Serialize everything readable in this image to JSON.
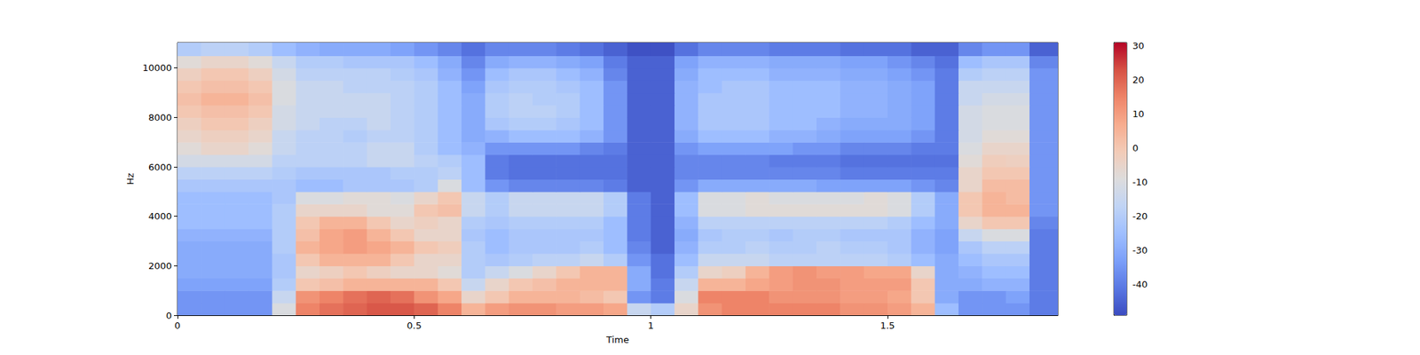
{
  "chart_data": {
    "type": "heatmap",
    "x_label": "Time",
    "y_label": "Hz",
    "xlim": [
      0,
      1.86
    ],
    "xticks": [
      0,
      0.5,
      1,
      1.5
    ],
    "ylim": [
      0,
      11025
    ],
    "yticks": [
      0,
      2000,
      4000,
      6000,
      8000,
      10000
    ],
    "x_bins": [
      0,
      0.05,
      0.1,
      0.15,
      0.2,
      0.25,
      0.3,
      0.35,
      0.4,
      0.45,
      0.5,
      0.55,
      0.6,
      0.65,
      0.7,
      0.75,
      0.8,
      0.85,
      0.9,
      0.95,
      1,
      1.05,
      1.1,
      1.15,
      1.2,
      1.25,
      1.3,
      1.35,
      1.4,
      1.45,
      1.5,
      1.55,
      1.6,
      1.65,
      1.7,
      1.75,
      1.8,
      1.86
    ],
    "y_bins": [
      0,
      500,
      1000,
      1500,
      2000,
      2500,
      3000,
      3500,
      4000,
      4500,
      5000,
      5500,
      6000,
      6500,
      7000,
      7500,
      8000,
      8500,
      9000,
      9500,
      10000,
      10500,
      11025
    ],
    "cells": [
      [
        -35,
        -35,
        -35,
        -35,
        -10,
        15,
        18,
        20,
        22,
        22,
        20,
        15,
        5,
        10,
        12,
        12,
        10,
        10,
        8,
        -15,
        -20,
        -5,
        12,
        15,
        15,
        15,
        15,
        15,
        12,
        12,
        10,
        5,
        -25,
        -35,
        -35,
        -35,
        -40
      ],
      [
        -35,
        -35,
        -35,
        -35,
        -15,
        12,
        15,
        18,
        20,
        18,
        12,
        8,
        -5,
        0,
        5,
        5,
        5,
        3,
        0,
        -35,
        -40,
        -10,
        15,
        15,
        15,
        12,
        12,
        12,
        10,
        10,
        8,
        0,
        -30,
        -35,
        -35,
        -32,
        -40
      ],
      [
        -32,
        -32,
        -32,
        -32,
        -20,
        0,
        2,
        5,
        5,
        5,
        5,
        0,
        -15,
        -5,
        0,
        2,
        5,
        5,
        5,
        -30,
        -40,
        -15,
        5,
        5,
        8,
        10,
        12,
        12,
        10,
        10,
        10,
        0,
        -30,
        -30,
        -28,
        -28,
        -40
      ],
      [
        -30,
        -30,
        -30,
        -30,
        -22,
        -5,
        -3,
        0,
        -3,
        -5,
        -5,
        -8,
        -20,
        -15,
        -10,
        -5,
        0,
        5,
        5,
        -30,
        -42,
        -20,
        -5,
        -3,
        5,
        10,
        12,
        10,
        10,
        8,
        8,
        -5,
        -30,
        -28,
        -25,
        -25,
        -40
      ],
      [
        -30,
        -30,
        -30,
        -30,
        -22,
        0,
        5,
        5,
        5,
        0,
        -5,
        -5,
        -20,
        -22,
        -20,
        -18,
        -18,
        -15,
        -20,
        -35,
        -42,
        -25,
        -15,
        -15,
        -15,
        -18,
        -18,
        -18,
        -18,
        -18,
        -20,
        -25,
        -30,
        -25,
        -22,
        -22,
        -40
      ],
      [
        -30,
        -30,
        -30,
        -30,
        -20,
        5,
        8,
        10,
        8,
        5,
        0,
        -2,
        -20,
        -25,
        -22,
        -22,
        -22,
        -20,
        -25,
        -38,
        -45,
        -28,
        -20,
        -20,
        -18,
        -20,
        -20,
        -18,
        -20,
        -20,
        -22,
        -28,
        -32,
        -22,
        -18,
        -18,
        -40
      ],
      [
        -28,
        -28,
        -28,
        -28,
        -20,
        2,
        8,
        10,
        5,
        0,
        -5,
        -5,
        -22,
        -25,
        -22,
        -22,
        -22,
        -22,
        -25,
        -40,
        -45,
        -30,
        -22,
        -20,
        -20,
        -22,
        -20,
        -20,
        -22,
        -22,
        -22,
        -28,
        -32,
        -15,
        -10,
        -10,
        -40
      ],
      [
        -25,
        -25,
        -25,
        -25,
        -20,
        0,
        5,
        5,
        0,
        -5,
        -3,
        -5,
        -20,
        -22,
        -20,
        -20,
        -20,
        -20,
        -25,
        -40,
        -45,
        -28,
        -18,
        -18,
        -18,
        -18,
        -18,
        -18,
        -18,
        -18,
        -20,
        -25,
        -30,
        -5,
        0,
        0,
        -38
      ],
      [
        -25,
        -25,
        -25,
        -25,
        -20,
        -5,
        -5,
        -5,
        -8,
        -8,
        0,
        2,
        -15,
        -20,
        -15,
        -15,
        -15,
        -15,
        -20,
        -40,
        -45,
        -25,
        -10,
        -10,
        -8,
        -8,
        -8,
        -8,
        -8,
        -8,
        -10,
        -20,
        -30,
        0,
        5,
        5,
        -35
      ],
      [
        -25,
        -25,
        -25,
        -25,
        -22,
        -10,
        -10,
        -8,
        -8,
        -10,
        -5,
        0,
        -15,
        -20,
        -15,
        -15,
        -15,
        -15,
        -20,
        -40,
        -45,
        -25,
        -10,
        -10,
        -8,
        -10,
        -10,
        -10,
        -10,
        -8,
        -10,
        -20,
        -30,
        0,
        5,
        3,
        -35
      ],
      [
        -22,
        -22,
        -22,
        -22,
        -22,
        -25,
        -25,
        -22,
        -22,
        -22,
        -20,
        -10,
        -25,
        -35,
        -38,
        -38,
        -38,
        -38,
        -40,
        -45,
        -45,
        -35,
        -30,
        -30,
        -30,
        -30,
        -30,
        -32,
        -32,
        -32,
        -32,
        -35,
        -38,
        -5,
        3,
        3,
        -35
      ],
      [
        -18,
        -18,
        -18,
        -18,
        -20,
        -22,
        -22,
        -22,
        -22,
        -20,
        -20,
        -18,
        -25,
        -40,
        -42,
        -42,
        -42,
        -42,
        -42,
        -45,
        -45,
        -38,
        -38,
        -38,
        -38,
        -38,
        -38,
        -38,
        -40,
        -40,
        -40,
        -40,
        -40,
        -5,
        0,
        0,
        -35
      ],
      [
        -12,
        -12,
        -12,
        -12,
        -18,
        -18,
        -18,
        -18,
        -15,
        -15,
        -18,
        -20,
        -25,
        -40,
        -42,
        -42,
        -42,
        -42,
        -42,
        -45,
        -45,
        -38,
        -38,
        -38,
        -38,
        -40,
        -40,
        -40,
        -42,
        -42,
        -42,
        -42,
        -42,
        -8,
        -2,
        -3,
        -35
      ],
      [
        -8,
        -5,
        -5,
        -8,
        -15,
        -18,
        -18,
        -18,
        -15,
        -15,
        -20,
        -25,
        -28,
        -35,
        -35,
        -35,
        -35,
        -38,
        -40,
        -45,
        -45,
        -35,
        -32,
        -32,
        -32,
        -32,
        -35,
        -35,
        -38,
        -38,
        -38,
        -40,
        -40,
        -10,
        -5,
        -5,
        -35
      ],
      [
        -5,
        -3,
        -3,
        -5,
        -15,
        -18,
        -18,
        -20,
        -18,
        -18,
        -20,
        -25,
        -30,
        -28,
        -25,
        -25,
        -25,
        -28,
        -35,
        -45,
        -45,
        -30,
        -25,
        -25,
        -25,
        -28,
        -28,
        -30,
        -32,
        -32,
        -32,
        -35,
        -40,
        -12,
        -8,
        -8,
        -35
      ],
      [
        -3,
        0,
        0,
        -3,
        -12,
        -15,
        -18,
        -18,
        -15,
        -18,
        -20,
        -25,
        -30,
        -22,
        -20,
        -20,
        -22,
        -25,
        -35,
        -45,
        -45,
        -28,
        -22,
        -22,
        -22,
        -25,
        -25,
        -28,
        -30,
        -30,
        -30,
        -32,
        -40,
        -12,
        -10,
        -10,
        -35
      ],
      [
        0,
        2,
        2,
        0,
        -12,
        -15,
        -15,
        -15,
        -15,
        -18,
        -20,
        -25,
        -30,
        -20,
        -18,
        -18,
        -20,
        -25,
        -35,
        -45,
        -45,
        -28,
        -22,
        -22,
        -22,
        -25,
        -25,
        -25,
        -28,
        -28,
        -30,
        -32,
        -40,
        -12,
        -10,
        -10,
        -35
      ],
      [
        2,
        5,
        5,
        2,
        -10,
        -15,
        -15,
        -15,
        -15,
        -18,
        -20,
        -25,
        -30,
        -20,
        -18,
        -20,
        -20,
        -25,
        -35,
        -45,
        -45,
        -28,
        -22,
        -22,
        -22,
        -25,
        -25,
        -25,
        -28,
        -28,
        -30,
        -32,
        -40,
        -15,
        -12,
        -12,
        -35
      ],
      [
        0,
        2,
        2,
        0,
        -10,
        -15,
        -15,
        -18,
        -18,
        -18,
        -20,
        -25,
        -32,
        -22,
        -20,
        -20,
        -22,
        -25,
        -35,
        -45,
        -45,
        -28,
        -25,
        -22,
        -22,
        -25,
        -25,
        -25,
        -28,
        -28,
        -30,
        -32,
        -40,
        -15,
        -15,
        -15,
        -35
      ],
      [
        -3,
        0,
        0,
        -3,
        -12,
        -18,
        -18,
        -18,
        -18,
        -20,
        -22,
        -28,
        -35,
        -25,
        -22,
        -22,
        -25,
        -28,
        -38,
        -45,
        -45,
        -30,
        -25,
        -25,
        -25,
        -28,
        -28,
        -28,
        -30,
        -30,
        -32,
        -35,
        -40,
        -20,
        -18,
        -18,
        -35
      ],
      [
        -8,
        -5,
        -5,
        -8,
        -15,
        -20,
        -20,
        -22,
        -22,
        -22,
        -25,
        -30,
        -38,
        -30,
        -28,
        -28,
        -30,
        -32,
        -40,
        -45,
        -45,
        -32,
        -28,
        -28,
        -28,
        -30,
        -30,
        -30,
        -32,
        -32,
        -35,
        -38,
        -42,
        -25,
        -22,
        -22,
        -38
      ],
      [
        -20,
        -18,
        -18,
        -20,
        -25,
        -28,
        -30,
        -30,
        -30,
        -32,
        -35,
        -38,
        -42,
        -38,
        -38,
        -38,
        -40,
        -42,
        -45,
        -48,
        -48,
        -42,
        -38,
        -38,
        -38,
        -40,
        -40,
        -40,
        -42,
        -42,
        -42,
        -45,
        -45,
        -38,
        -35,
        -35,
        -45
      ]
    ],
    "clim": [
      -49,
      31
    ],
    "cticks": [
      -40,
      -30,
      -20,
      -10,
      0,
      10,
      20,
      30
    ]
  }
}
